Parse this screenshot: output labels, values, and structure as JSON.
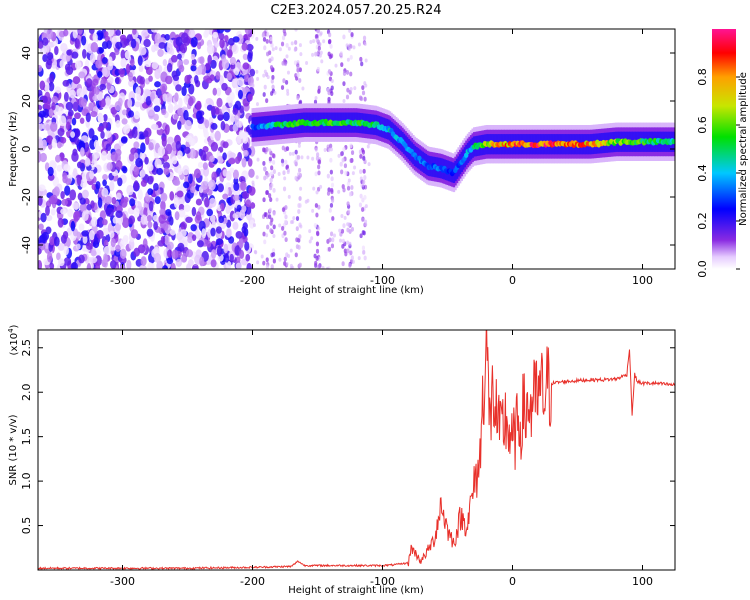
{
  "title": "C2E3.2024.057.20.25.R24",
  "chart_data": [
    {
      "type": "heatmap",
      "xlabel": "Height of straight line (km)",
      "ylabel": "Frequency (Hz)",
      "xlim": [
        -365,
        125
      ],
      "ylim": [
        -50,
        50
      ],
      "xticks": [
        -300,
        -200,
        -100,
        0,
        100
      ],
      "yticks": [
        -40,
        -20,
        0,
        20,
        40
      ],
      "grid": false,
      "colorbar": {
        "label": "Normalized spectral amplitude",
        "range": [
          0,
          1
        ],
        "ticks": [
          0.0,
          0.2,
          0.4,
          0.6,
          0.8
        ],
        "colormap": "rainbow"
      },
      "ridge": {
        "description_values": "peak frequency (Hz) vs height (km)",
        "x": [
          -200,
          -180,
          -160,
          -140,
          -120,
          -105,
          -95,
          -85,
          -75,
          -65,
          -55,
          -45,
          -40,
          -35,
          -30,
          -20,
          0,
          20,
          40,
          60,
          80,
          100,
          125
        ],
        "y": [
          9,
          10,
          11,
          11,
          11,
          10,
          8,
          3,
          -3,
          -7,
          -8,
          -10,
          -6,
          -2,
          1,
          2,
          2,
          2,
          2,
          2,
          3,
          3,
          3
        ],
        "amplitude": [
          0.3,
          0.55,
          0.6,
          0.6,
          0.6,
          0.55,
          0.45,
          0.4,
          0.35,
          0.35,
          0.35,
          0.3,
          0.35,
          0.4,
          0.5,
          0.75,
          0.9,
          0.95,
          0.95,
          0.85,
          0.7,
          0.6,
          0.5
        ]
      },
      "noise_region_x": [
        -365,
        -200
      ],
      "sparse_region_x": [
        -200,
        -110
      ]
    },
    {
      "type": "line",
      "xlabel": "Height of straight line (km)",
      "ylabel": "SNR (10 * v/v)",
      "y_scale_label": "(x10",
      "y_scale_exponent": "4",
      "y_scale_suffix": ")",
      "xlim": [
        -365,
        125
      ],
      "ylim": [
        0,
        2.7
      ],
      "xticks": [
        -300,
        -200,
        -100,
        0,
        100
      ],
      "yticks": [
        0.5,
        1.0,
        1.5,
        2.0,
        2.5
      ],
      "grid": false,
      "series": [
        {
          "color": "#e8302a",
          "x": [
            -365,
            -300,
            -250,
            -200,
            -170,
            -165,
            -160,
            -140,
            -120,
            -100,
            -90,
            -80,
            -78,
            -70,
            -60,
            -55,
            -50,
            -45,
            -40,
            -35,
            -30,
            -25,
            -22,
            -20,
            -18,
            -15,
            -10,
            -5,
            0,
            5,
            10,
            15,
            20,
            25,
            30,
            40,
            50,
            60,
            70,
            80,
            88,
            90,
            92,
            94,
            96,
            100,
            110,
            125
          ],
          "y": [
            0.02,
            0.02,
            0.02,
            0.03,
            0.04,
            0.1,
            0.05,
            0.05,
            0.05,
            0.05,
            0.06,
            0.08,
            0.25,
            0.1,
            0.35,
            0.75,
            0.45,
            0.3,
            0.6,
            0.5,
            0.9,
            1.25,
            2.2,
            2.7,
            1.6,
            2.0,
            1.5,
            1.7,
            1.4,
            1.65,
            1.8,
            1.85,
            1.95,
            2.0,
            2.1,
            2.12,
            2.13,
            2.14,
            2.14,
            2.15,
            2.2,
            2.5,
            1.75,
            2.2,
            2.12,
            2.1,
            2.1,
            2.08
          ]
        }
      ]
    }
  ]
}
